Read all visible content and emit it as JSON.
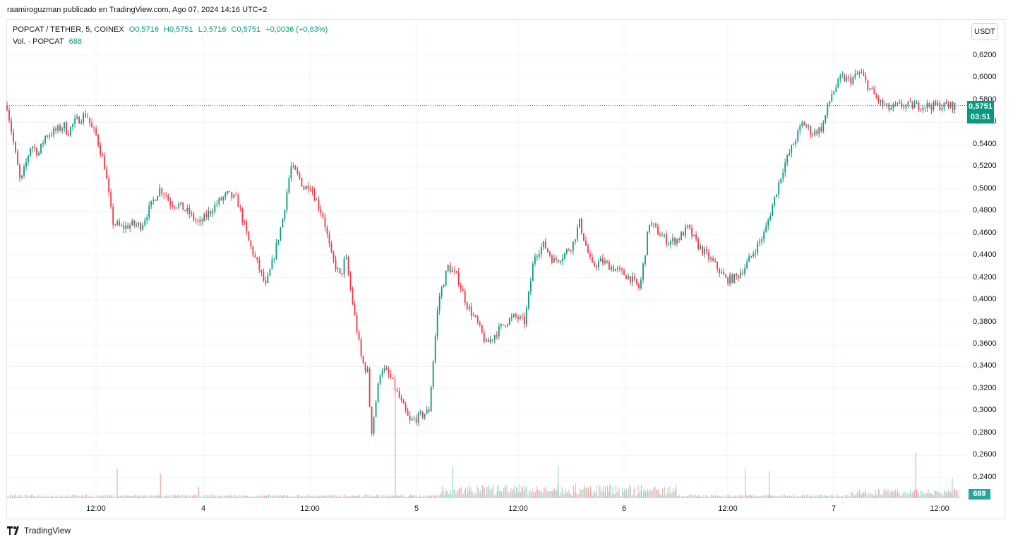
{
  "caption": "raamiroguzman publicado en TradingView.com, Ago 07, 2024 14:16 UTC+2",
  "legend": {
    "symbol": "POPCAT / TETHER, 5, COINEX",
    "open": "O0,5716",
    "high": "H0,5751",
    "low": "L0,5716",
    "close": "C0,5751",
    "change": "+0,0036 (+0,63%)",
    "volume_label": "Vol. · POPCAT",
    "volume_value": "688"
  },
  "currency_button": "USDT",
  "last_price_label": "0,5751",
  "countdown": "03:51",
  "volume_label_tag": "688",
  "brand": "TradingView",
  "colors": {
    "up": "#089981",
    "down": "#f23645",
    "vol_up": "#9fd6cf",
    "vol_down": "#f7a9a7",
    "grid": "#f0f3fa"
  },
  "chart_data": {
    "type": "candlestick",
    "y_ticks": [
      "0,6200",
      "0,6000",
      "0,5800",
      "0,5600",
      "0,5400",
      "0,5200",
      "0,5000",
      "0,4800",
      "0,4600",
      "0,4400",
      "0,4200",
      "0,4000",
      "0,3800",
      "0,3600",
      "0,3400",
      "0,3200",
      "0,3000",
      "0,2800",
      "0,2600",
      "0,2400"
    ],
    "ylim": [
      0.23,
      0.64
    ],
    "x_ticks": [
      "12:00",
      "4",
      "12:00",
      "5",
      "12:00",
      "6",
      "12:00",
      "7",
      "12:00"
    ],
    "last_price": 0.5751,
    "price_path": {
      "time": [
        0,
        1.4,
        2.5,
        3.3,
        4,
        5,
        6,
        6.3,
        7,
        7.9,
        8.3,
        8.8,
        9.3,
        10.2,
        11,
        12,
        13,
        14,
        15,
        15.9,
        16.6,
        16.9,
        18,
        19,
        20,
        21,
        22,
        23,
        24,
        25.3,
        26,
        27,
        28,
        28.8,
        29.6,
        30.5,
        31,
        31.5,
        32.5,
        33,
        33.8,
        34.8,
        35.3,
        36,
        37,
        37.6,
        38,
        39,
        40,
        41,
        42,
        43,
        44,
        45,
        46,
        47,
        48,
        49,
        50,
        51,
        52,
        53,
        54,
        55,
        56,
        57,
        58,
        59,
        59.7,
        60.5,
        61,
        62,
        63,
        64,
        65,
        66,
        67,
        68,
        69,
        70,
        71,
        72,
        73,
        74,
        75,
        76,
        77,
        78,
        79,
        80,
        81,
        82,
        83,
        84,
        85,
        86,
        87,
        88,
        89,
        90,
        91,
        92,
        93,
        94,
        95,
        96,
        97,
        98,
        99,
        100
      ],
      "price": [
        0.575,
        0.505,
        0.54,
        0.532,
        0.548,
        0.552,
        0.557,
        0.55,
        0.56,
        0.565,
        0.568,
        0.555,
        0.548,
        0.52,
        0.47,
        0.465,
        0.468,
        0.467,
        0.485,
        0.5,
        0.495,
        0.488,
        0.485,
        0.478,
        0.468,
        0.478,
        0.488,
        0.495,
        0.49,
        0.45,
        0.435,
        0.412,
        0.445,
        0.475,
        0.52,
        0.51,
        0.5,
        0.505,
        0.485,
        0.475,
        0.44,
        0.42,
        0.44,
        0.4,
        0.345,
        0.335,
        0.28,
        0.34,
        0.33,
        0.31,
        0.29,
        0.295,
        0.3,
        0.4,
        0.43,
        0.42,
        0.395,
        0.38,
        0.36,
        0.37,
        0.38,
        0.385,
        0.38,
        0.44,
        0.45,
        0.435,
        0.44,
        0.45,
        0.47,
        0.445,
        0.43,
        0.435,
        0.43,
        0.425,
        0.42,
        0.41,
        0.47,
        0.46,
        0.452,
        0.455,
        0.465,
        0.45,
        0.44,
        0.43,
        0.418,
        0.42,
        0.43,
        0.445,
        0.46,
        0.49,
        0.52,
        0.54,
        0.56,
        0.55,
        0.555,
        0.585,
        0.6,
        0.598,
        0.605,
        0.59,
        0.578,
        0.572,
        0.575,
        0.575,
        0.575,
        0.575,
        0.575,
        0.575,
        0.575
      ]
    },
    "volume_spikes": [
      {
        "time": 11.5,
        "value": 0.13,
        "dir": "up"
      },
      {
        "time": 16,
        "value": 0.11,
        "dir": "down"
      },
      {
        "time": 20,
        "value": 0.05,
        "dir": "down"
      },
      {
        "time": 40.5,
        "value": 0.53,
        "dir": "down"
      },
      {
        "time": 46.5,
        "value": 0.14,
        "dir": "up"
      },
      {
        "time": 57.5,
        "value": 0.14,
        "dir": "up"
      },
      {
        "time": 77,
        "value": 0.13,
        "dir": "up"
      },
      {
        "time": 79.5,
        "value": 0.12,
        "dir": "up"
      },
      {
        "time": 94.8,
        "value": 0.2,
        "dir": "down"
      },
      {
        "time": 98.6,
        "value": 0.09,
        "dir": "up"
      }
    ]
  }
}
